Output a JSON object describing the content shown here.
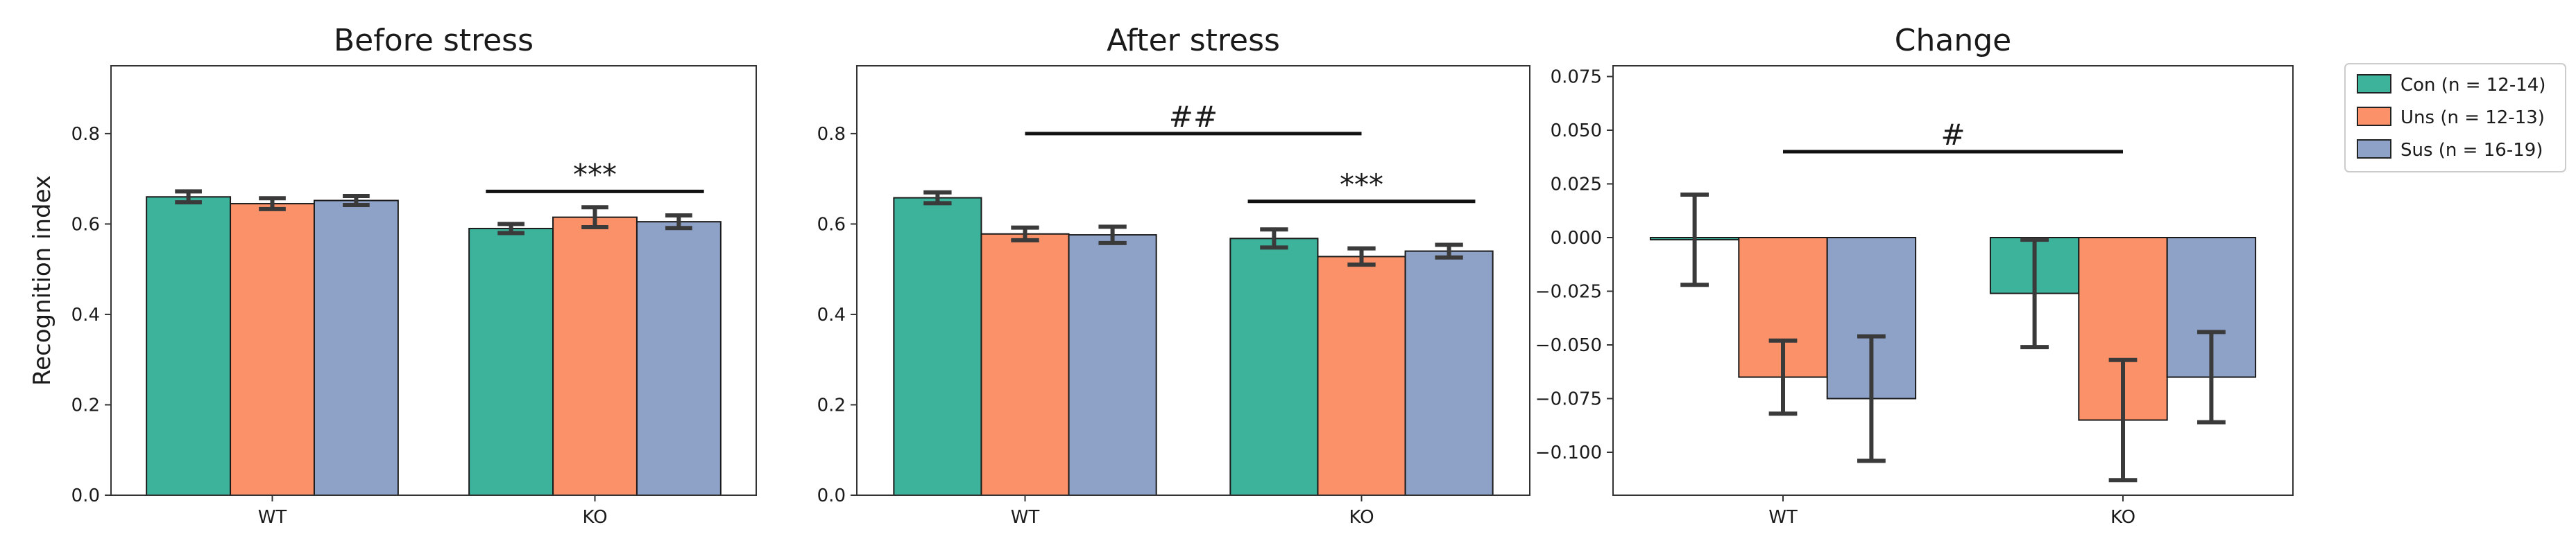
{
  "colors": {
    "con": "#3db39c",
    "uns": "#fa9169",
    "sus": "#8ea2c8",
    "errorbar": "#3a3a3a",
    "axis": "#333333"
  },
  "legend": [
    {
      "label": "Con (n = 12-14)",
      "color": "#3db39c"
    },
    {
      "label": "Uns (n = 12-13)",
      "color": "#fa9169"
    },
    {
      "label": "Sus (n = 16-19)",
      "color": "#8ea2c8"
    }
  ],
  "chart_data": [
    {
      "type": "bar",
      "title": "Before stress",
      "ylabel": "Recognition index",
      "xlabel": "",
      "categories": [
        "WT",
        "KO"
      ],
      "ylim": [
        0,
        0.95
      ],
      "yticks": [
        0.0,
        0.2,
        0.4,
        0.6,
        0.8
      ],
      "ytick_labels": [
        "0.0",
        "0.2",
        "0.4",
        "0.6",
        "0.8"
      ],
      "series": [
        {
          "name": "Con",
          "values": [
            0.66,
            0.59
          ],
          "errors": [
            0.012,
            0.01
          ]
        },
        {
          "name": "Uns",
          "values": [
            0.645,
            0.615
          ],
          "errors": [
            0.012,
            0.022
          ]
        },
        {
          "name": "Sus",
          "values": [
            0.652,
            0.605
          ],
          "errors": [
            0.01,
            0.014
          ]
        }
      ],
      "annotations": [
        {
          "text": "***",
          "category": "KO",
          "y": 0.672
        }
      ]
    },
    {
      "type": "bar",
      "title": "After stress",
      "ylabel": "",
      "xlabel": "",
      "categories": [
        "WT",
        "KO"
      ],
      "ylim": [
        0,
        0.95
      ],
      "yticks": [
        0.0,
        0.2,
        0.4,
        0.6,
        0.8
      ],
      "ytick_labels": [
        "0.0",
        "0.2",
        "0.4",
        "0.6",
        "0.8"
      ],
      "series": [
        {
          "name": "Con",
          "values": [
            0.658,
            0.568
          ],
          "errors": [
            0.012,
            0.02
          ]
        },
        {
          "name": "Uns",
          "values": [
            0.578,
            0.528
          ],
          "errors": [
            0.014,
            0.018
          ]
        },
        {
          "name": "Sus",
          "values": [
            0.576,
            0.54
          ],
          "errors": [
            0.018,
            0.014
          ]
        }
      ],
      "annotations": [
        {
          "text": "##",
          "span": [
            "WT",
            "KO"
          ],
          "y": 0.8
        },
        {
          "text": "***",
          "category": "KO",
          "y": 0.65
        }
      ]
    },
    {
      "type": "bar",
      "title": "Change",
      "ylabel": "",
      "xlabel": "",
      "categories": [
        "WT",
        "KO"
      ],
      "ylim": [
        -0.12,
        0.08
      ],
      "yticks": [
        0.075,
        0.05,
        0.025,
        0.0,
        -0.025,
        -0.05,
        -0.075,
        -0.1
      ],
      "ytick_labels": [
        "0.075",
        "0.050",
        "0.025",
        "0.000",
        "−0.025",
        "−0.050",
        "−0.075",
        "−0.100"
      ],
      "series": [
        {
          "name": "Con",
          "values": [
            -0.001,
            -0.026
          ],
          "errors": [
            0.021,
            0.025
          ]
        },
        {
          "name": "Uns",
          "values": [
            -0.065,
            -0.085
          ],
          "errors": [
            0.017,
            0.028
          ]
        },
        {
          "name": "Sus",
          "values": [
            -0.075,
            -0.065
          ],
          "errors": [
            0.029,
            0.021
          ]
        }
      ],
      "annotations": [
        {
          "text": "#",
          "span": [
            "WT",
            "KO"
          ],
          "y": 0.04
        }
      ]
    }
  ]
}
